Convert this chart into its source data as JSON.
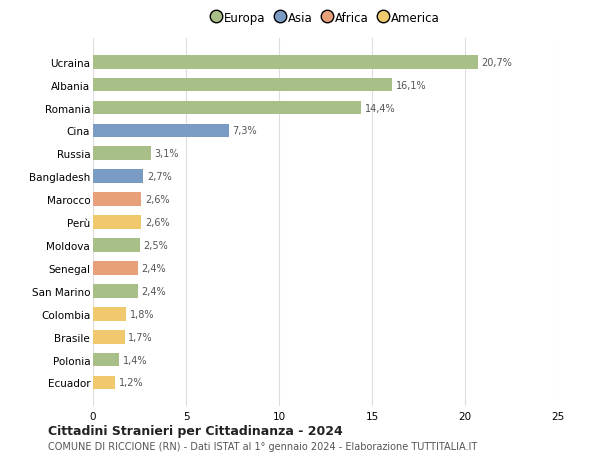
{
  "categories": [
    "Ecuador",
    "Polonia",
    "Brasile",
    "Colombia",
    "San Marino",
    "Senegal",
    "Moldova",
    "Perù",
    "Marocco",
    "Bangladesh",
    "Russia",
    "Cina",
    "Romania",
    "Albania",
    "Ucraina"
  ],
  "values": [
    1.2,
    1.4,
    1.7,
    1.8,
    2.4,
    2.4,
    2.5,
    2.6,
    2.6,
    2.7,
    3.1,
    7.3,
    14.4,
    16.1,
    20.7
  ],
  "labels": [
    "1,2%",
    "1,4%",
    "1,7%",
    "1,8%",
    "2,4%",
    "2,4%",
    "2,5%",
    "2,6%",
    "2,6%",
    "2,7%",
    "3,1%",
    "7,3%",
    "14,4%",
    "16,1%",
    "20,7%"
  ],
  "colors": [
    "#f0c96e",
    "#a8bf87",
    "#f0c96e",
    "#f0c96e",
    "#a8bf87",
    "#e8a07a",
    "#a8bf87",
    "#f0c96e",
    "#e8a07a",
    "#7a9bc4",
    "#a8bf87",
    "#7a9bc4",
    "#a8bf87",
    "#a8bf87",
    "#a8bf87"
  ],
  "legend": [
    {
      "label": "Europa",
      "color": "#a8bf87"
    },
    {
      "label": "Asia",
      "color": "#7a9bc4"
    },
    {
      "label": "Africa",
      "color": "#e8a07a"
    },
    {
      "label": "America",
      "color": "#f0c96e"
    }
  ],
  "xlim": [
    0,
    25
  ],
  "xticks": [
    0,
    5,
    10,
    15,
    20,
    25
  ],
  "title": "Cittadini Stranieri per Cittadinanza - 2024",
  "subtitle": "COMUNE DI RICCIONE (RN) - Dati ISTAT al 1° gennaio 2024 - Elaborazione TUTTITALIA.IT",
  "bg_color": "#ffffff",
  "grid_color": "#dddddd"
}
